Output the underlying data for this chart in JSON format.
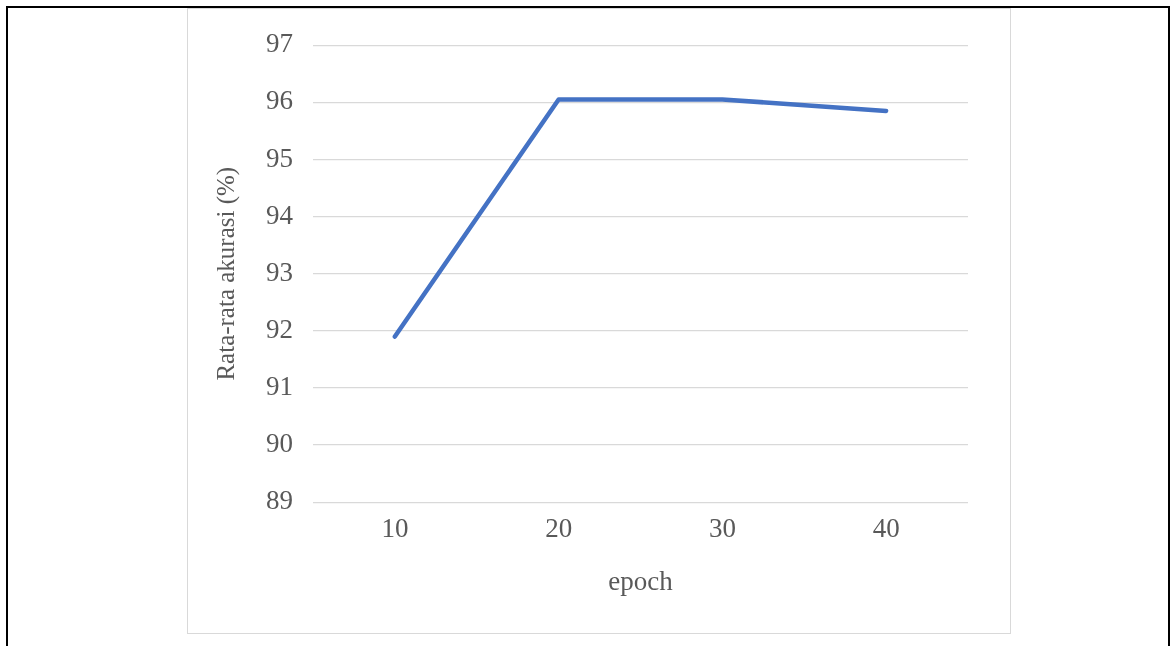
{
  "chart_data": {
    "type": "line",
    "xlabel": "epoch",
    "ylabel": "Rata-rata akurasi (%)",
    "categories": [
      "10",
      "20",
      "30",
      "40"
    ],
    "series": [
      {
        "color": "#4472c4",
        "values": [
          91.9,
          96.05,
          96.05,
          95.85
        ]
      }
    ],
    "ylim": [
      89,
      97
    ],
    "yticks": [
      89,
      90,
      91,
      92,
      93,
      94,
      95,
      96,
      97
    ],
    "grid": "y",
    "legend": false,
    "marker": "none",
    "line_style": "solid"
  }
}
